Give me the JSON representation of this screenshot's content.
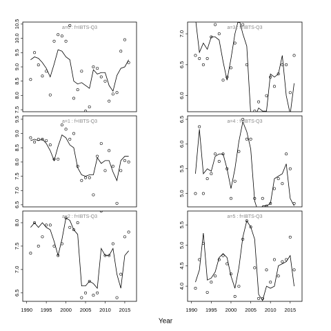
{
  "xlabel": "Year",
  "chart_data": [
    {
      "type": "line",
      "title": "a=0 : f=IBTS-Q3",
      "x": [
        1991,
        1992,
        1993,
        1994,
        1995,
        1996,
        1997,
        1998,
        1999,
        2000,
        2001,
        2002,
        2003,
        2004,
        2005,
        2006,
        2007,
        2008,
        2009,
        2010,
        2011,
        2012,
        2013,
        2014,
        2015,
        2016
      ],
      "series": [
        {
          "style": "line",
          "values": [
            9.25,
            9.35,
            9.3,
            9.15,
            8.95,
            8.65,
            9.1,
            9.6,
            9.55,
            9.35,
            9.25,
            8.5,
            8.4,
            8.45,
            8.35,
            8.25,
            8.9,
            8.75,
            8.8,
            8.8,
            8.35,
            8.15,
            8.7,
            8.95,
            9.0,
            9.25
          ]
        },
        {
          "style": "points",
          "values": [
            8.56,
            9.5,
            9.07,
            8.68,
            8.85,
            8.02,
            9.9,
            10.13,
            10.08,
            9.9,
            10.45,
            7.9,
            8.2,
            8.85,
            7.45,
            7.6,
            9.0,
            8.95,
            8.65,
            8.5,
            7.8,
            8.05,
            8.1,
            9.55,
            9.95,
            9.15
          ]
        }
      ],
      "xlim": [
        1989,
        2018
      ],
      "ylim": [
        7.43,
        10.57
      ],
      "yticks": [
        7.5,
        {
          "value": 8,
          "label": "8.0"
        },
        8.5,
        {
          "value": 9,
          "label": "9.0"
        },
        9.5,
        {
          "value": 10,
          "label": "10.0"
        },
        10.5
      ]
    },
    {
      "type": "line",
      "title": "a=1 : f=IBTS-Q3",
      "x": [
        1991,
        1992,
        1993,
        1994,
        1995,
        1996,
        1997,
        1998,
        1999,
        2000,
        2001,
        2002,
        2003,
        2004,
        2005,
        2006,
        2007,
        2008,
        2009,
        2010,
        2011,
        2012,
        2013,
        2014,
        2015,
        2016
      ],
      "series": [
        {
          "style": "line",
          "values": [
            8.75,
            8.8,
            8.75,
            8.8,
            8.65,
            8.4,
            8.05,
            8.55,
            8.95,
            8.85,
            8.6,
            8.5,
            7.8,
            7.55,
            7.5,
            7.55,
            7.55,
            8.15,
            7.95,
            8.05,
            8.05,
            7.65,
            7.35,
            8.05,
            8.2,
            8.2
          ]
        },
        {
          "style": "points",
          "values": [
            8.85,
            8.7,
            8.8,
            8.8,
            8.75,
            8.6,
            8.1,
            8.1,
            9.3,
            9.15,
            8.8,
            9.0,
            7.85,
            7.35,
            7.45,
            7.45,
            6.85,
            8.2,
            8.65,
            7.7,
            8.4,
            7.85,
            6.55,
            7.7,
            8.05,
            8.0
          ]
        }
      ],
      "xlim": [
        1989,
        2018
      ],
      "ylim": [
        6.425,
        9.62
      ],
      "yticks": [
        6.5,
        {
          "value": 7,
          "label": "7.0"
        },
        7.5,
        {
          "value": 8,
          "label": "8.0"
        },
        8.5,
        {
          "value": 9,
          "label": "9.0"
        },
        9.5
      ]
    },
    {
      "type": "line",
      "title": "a=2 : f=IBTS-Q3",
      "x": [
        1991,
        1992,
        1993,
        1994,
        1995,
        1996,
        1997,
        1998,
        1999,
        2000,
        2001,
        2002,
        2003,
        2004,
        2005,
        2006,
        2007,
        2008,
        2009,
        2010,
        2011,
        2012,
        2013,
        2014,
        2015,
        2016
      ],
      "series": [
        {
          "style": "line",
          "values": [
            7.9,
            8.0,
            7.9,
            8.0,
            7.9,
            7.85,
            7.6,
            7.3,
            7.65,
            8.1,
            8.05,
            7.85,
            7.75,
            6.65,
            6.65,
            6.75,
            6.7,
            6.6,
            7.45,
            7.3,
            7.3,
            7.45,
            6.9,
            6.6,
            7.3,
            7.4
          ]
        },
        {
          "style": "points",
          "values": [
            7.35,
            8.0,
            7.5,
            7.7,
            7.95,
            7.95,
            7.5,
            7.3,
            7.55,
            8.1,
            7.9,
            7.85,
            8.0,
            6.4,
            6.5,
            6.75,
            6.45,
            6.5,
            8.25,
            7.3,
            7.3,
            7.55,
            6.4,
            6.9,
            7.7,
            7.8
          ]
        }
      ],
      "xlim": [
        1989,
        2018
      ],
      "ylim": [
        6.32,
        8.25
      ],
      "xticks": [
        1990,
        1995,
        2000,
        2005,
        2010,
        2015
      ],
      "yticks": [
        6.5,
        {
          "value": 7,
          "label": "7.0"
        },
        7.5,
        {
          "value": 8,
          "label": "8.0"
        }
      ]
    },
    {
      "type": "line",
      "title": "a=3 : f=IBTS-Q3",
      "x": [
        1991,
        1992,
        1993,
        1994,
        1995,
        1996,
        1997,
        1998,
        1999,
        2000,
        2001,
        2002,
        2003,
        2004,
        2005,
        2006,
        2007,
        2008,
        2009,
        2010,
        2011,
        2012,
        2013,
        2014,
        2015,
        2016
      ],
      "series": [
        {
          "style": "line",
          "values": [
            7.25,
            6.7,
            6.85,
            6.75,
            6.95,
            6.95,
            6.9,
            6.55,
            6.25,
            6.6,
            7.0,
            7.25,
            7.0,
            6.8,
            5.7,
            5.65,
            5.8,
            5.75,
            5.75,
            6.35,
            6.3,
            6.35,
            6.65,
            6.0,
            5.7,
            6.2
          ]
        },
        {
          "style": "points",
          "values": [
            6.65,
            6.6,
            6.5,
            6.6,
            6.95,
            7.15,
            7.0,
            6.25,
            6.3,
            6.45,
            6.85,
            7.2,
            7.15,
            6.5,
            5.7,
            5.75,
            5.9,
            5.7,
            6.0,
            6.3,
            6.15,
            6.35,
            6.5,
            6.5,
            6.05,
            6.65
          ]
        }
      ],
      "xlim": [
        1989,
        2018
      ],
      "ylim": [
        5.74,
        7.19
      ],
      "yticks": [
        {
          "value": 6,
          "label": "6.0"
        },
        6.5,
        {
          "value": 7,
          "label": "7.0"
        }
      ]
    },
    {
      "type": "line",
      "title": "a=4 : f=IBTS-Q3",
      "x": [
        1991,
        1992,
        1993,
        1994,
        1995,
        1996,
        1997,
        1998,
        1999,
        2000,
        2001,
        2002,
        2003,
        2004,
        2005,
        2006,
        2007,
        2008,
        2009,
        2010,
        2011,
        2012,
        2013,
        2014,
        2015,
        2016
      ],
      "series": [
        {
          "style": "line",
          "values": [
            5.4,
            6.3,
            5.4,
            5.5,
            5.45,
            5.75,
            5.8,
            5.8,
            5.5,
            5.1,
            5.5,
            6.05,
            6.45,
            6.25,
            5.9,
            4.85,
            4.6,
            4.75,
            4.75,
            4.8,
            5.3,
            5.35,
            5.4,
            5.6,
            4.9,
            4.75
          ]
        },
        {
          "style": "points",
          "values": [
            5.0,
            6.35,
            5.0,
            5.3,
            5.4,
            5.8,
            5.65,
            5.8,
            5.5,
            4.9,
            5.25,
            5.85,
            6.5,
            6.1,
            6.1,
            4.9,
            4.7,
            4.9,
            4.75,
            4.8,
            5.1,
            5.3,
            5.2,
            5.8,
            5.5,
            4.8
          ]
        }
      ],
      "xlim": [
        1989,
        2018
      ],
      "ylim": [
        4.73,
        6.57
      ],
      "yticks": [
        {
          "value": 5,
          "label": "5.0"
        },
        5.5,
        {
          "value": 6,
          "label": "6.0"
        },
        6.5
      ]
    },
    {
      "type": "line",
      "title": "a=5 : f=IBTS-Q3",
      "x": [
        1991,
        1992,
        1993,
        1994,
        1995,
        1996,
        1997,
        1998,
        1999,
        2000,
        2001,
        2002,
        2003,
        2004,
        2005,
        2006,
        2007,
        2008,
        2009,
        2010,
        2011,
        2012,
        2013,
        2014,
        2015,
        2016
      ],
      "series": [
        {
          "style": "line",
          "values": [
            4.1,
            4.4,
            5.3,
            4.15,
            4.2,
            4.35,
            4.7,
            4.8,
            4.7,
            4.25,
            3.95,
            4.45,
            5.2,
            5.6,
            5.45,
            5.15,
            3.8,
            3.65,
            4.0,
            3.95,
            4.0,
            4.5,
            4.55,
            4.6,
            4.75,
            4.0
          ]
        },
        {
          "style": "points",
          "values": [
            3.95,
            4.65,
            5.05,
            3.85,
            4.1,
            4.25,
            4.65,
            4.75,
            4.55,
            4.3,
            3.75,
            4.0,
            5.15,
            5.6,
            5.45,
            4.45,
            3.7,
            3.7,
            4.4,
            4.1,
            4.65,
            4.25,
            4.6,
            4.65,
            5.2,
            4.4
          ]
        }
      ],
      "xlim": [
        1989,
        2018
      ],
      "ylim": [
        3.63,
        5.84
      ],
      "xticks": [
        1990,
        1995,
        2000,
        2005,
        2010,
        2015
      ],
      "yticks": [
        {
          "value": 4,
          "label": "4.0"
        },
        4.5,
        {
          "value": 5,
          "label": "5.0"
        },
        5.5
      ]
    }
  ]
}
